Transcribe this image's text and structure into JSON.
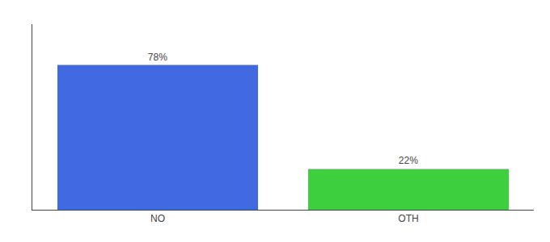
{
  "chart_data": {
    "type": "bar",
    "categories": [
      "NO",
      "OTH"
    ],
    "values": [
      78,
      22
    ],
    "value_labels": [
      "78%",
      "22%"
    ],
    "colors": [
      "#4169e1",
      "#3dcf3d"
    ],
    "ylim": [
      0,
      100
    ],
    "yticks": [],
    "grid": false,
    "data_labels": true,
    "tick_labels": "x"
  }
}
